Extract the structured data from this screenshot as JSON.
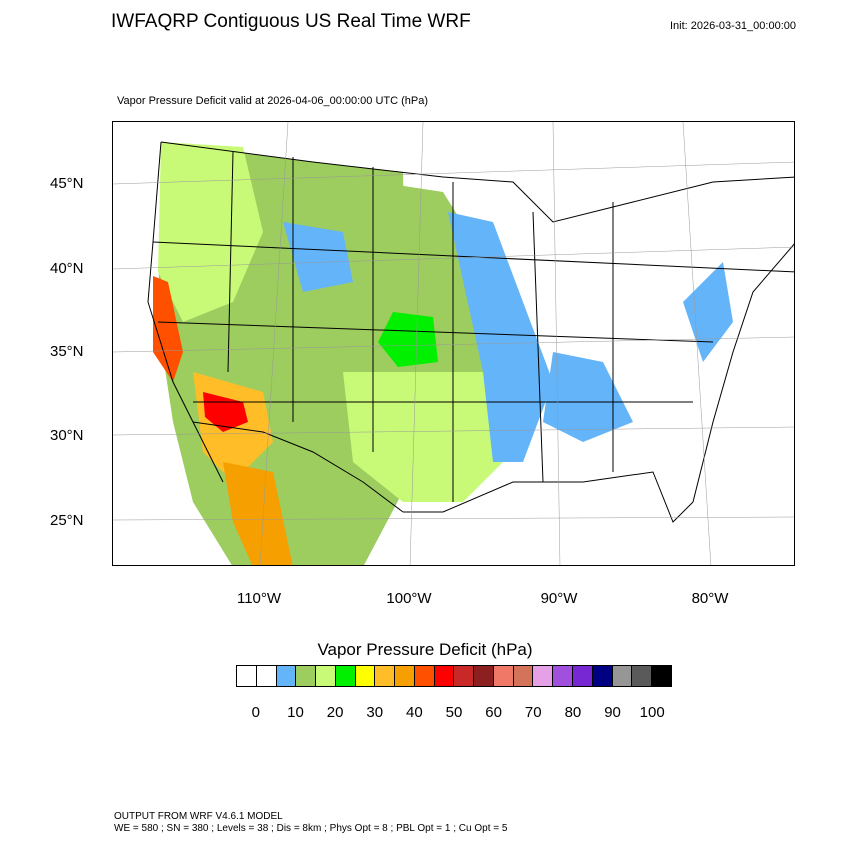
{
  "header": {
    "title": "IWFAQRP Contiguous US Real Time WRF",
    "init": "Init: 2026-03-31_00:00:00",
    "subtitle": "Vapor Pressure Deficit valid at 2026-04-06_00:00:00 UTC   (hPa)"
  },
  "map": {
    "lat_labels": [
      "45°N",
      "40°N",
      "35°N",
      "30°N",
      "25°N"
    ],
    "lon_labels": [
      "110°W",
      "100°W",
      "90°W",
      "80°W"
    ],
    "region": "Contiguous United States"
  },
  "colorbar": {
    "title": "Vapor Pressure Deficit  (hPa)",
    "colors": [
      "#ffffff",
      "#ffffff",
      "#64b4fa",
      "#9dcc5f",
      "#c8fa78",
      "#00f000",
      "#ffff00",
      "#ffbe28",
      "#f5a000",
      "#ff5000",
      "#ff0000",
      "#c82828",
      "#8c2020",
      "#f07866",
      "#d2735a",
      "#e6a0e6",
      "#a050dc",
      "#7828d2",
      "#000082",
      "#969696",
      "#5a5a5a",
      "#000000"
    ],
    "tick_labels": [
      "0",
      "10",
      "20",
      "30",
      "40",
      "50",
      "60",
      "70",
      "80",
      "90",
      "100"
    ]
  },
  "footer": {
    "line1": "OUTPUT FROM WRF V4.6.1 MODEL",
    "line2": "WE = 580 ; SN = 380 ; Levels = 38 ; Dis = 8km ; Phys Opt = 8 ; PBL Opt = 1 ; Cu Opt = 5"
  }
}
